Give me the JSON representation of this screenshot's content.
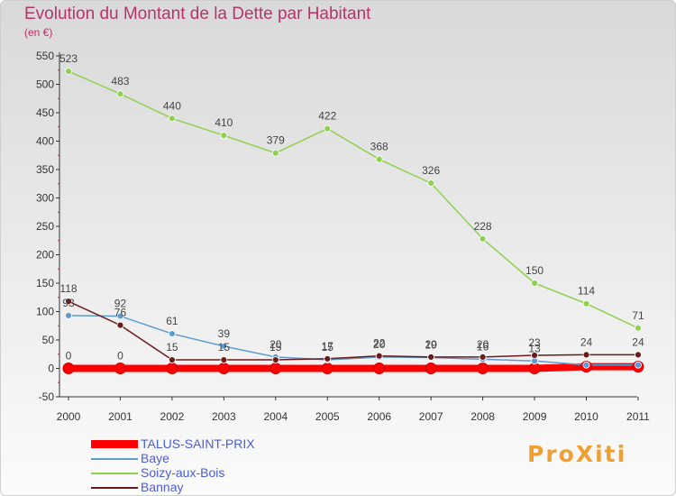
{
  "brand": {
    "text": "ProXiti"
  },
  "chart_data": {
    "type": "line",
    "title": "Evolution du Montant de la Dette par Habitant",
    "subtitle": "(en €)",
    "x": [
      "2000",
      "2001",
      "2002",
      "2003",
      "2004",
      "2005",
      "2006",
      "2007",
      "2008",
      "2009",
      "2010",
      "2011"
    ],
    "ylim": [
      -50,
      550
    ],
    "yticks": [
      -50,
      0,
      50,
      100,
      150,
      200,
      250,
      300,
      350,
      400,
      450,
      500,
      550
    ],
    "grid": false,
    "legend_position": "bottom-left",
    "series": [
      {
        "name": "TALUS-SAINT-PRIX",
        "color": "#ff0000",
        "values": [
          0,
          0,
          0,
          0,
          0,
          0,
          0,
          0,
          0,
          0,
          3,
          3
        ],
        "labels": [
          "0",
          "0",
          "",
          "",
          "",
          "",
          "",
          "",
          "",
          "",
          "",
          ""
        ]
      },
      {
        "name": "Baye",
        "color": "#5b9bd5",
        "values": [
          93,
          92,
          61,
          39,
          20,
          15,
          20,
          19,
          16,
          13,
          6,
          6
        ],
        "labels": [
          "93",
          "92",
          "61",
          "39",
          "20",
          "15",
          "20",
          "19",
          "16",
          "13",
          "",
          ""
        ]
      },
      {
        "name": "Soizy-aux-Bois",
        "color": "#8fd14f",
        "values": [
          523,
          483,
          440,
          410,
          379,
          422,
          368,
          326,
          228,
          150,
          114,
          71
        ],
        "labels": [
          "523",
          "483",
          "440",
          "410",
          "379",
          "422",
          "368",
          "326",
          "228",
          "150",
          "114",
          "71"
        ]
      },
      {
        "name": "Bannay",
        "color": "#6b1a1a",
        "values": [
          118,
          76,
          15,
          15,
          15,
          17,
          22,
          20,
          20,
          23,
          24,
          24
        ],
        "labels": [
          "118",
          "76",
          "15",
          "15",
          "15",
          "17",
          "22",
          "20",
          "20",
          "23",
          "24",
          "24"
        ]
      }
    ]
  }
}
